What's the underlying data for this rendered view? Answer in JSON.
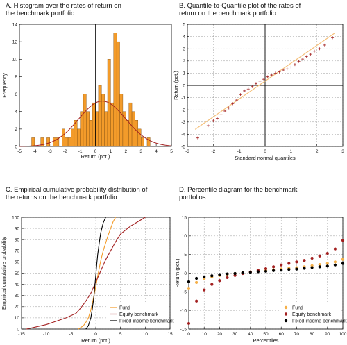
{
  "chart_data": [
    {
      "id": "A",
      "type": "bar",
      "title_lines": [
        "A. Histogram over the rates of return on",
        "the benchmark portfolio"
      ],
      "xlabel": "Return (pct.)",
      "ylabel": "Frequency",
      "xlim": [
        -5,
        5
      ],
      "ylim": [
        0,
        14
      ],
      "xticks": [
        -5,
        -4,
        -3,
        -2,
        -1,
        0,
        1,
        2,
        3,
        4,
        5
      ],
      "yticks": [
        0,
        2,
        4,
        6,
        8,
        10,
        12,
        14
      ],
      "bin_width": 0.2,
      "bins": [
        [
          -4.2,
          1
        ],
        [
          -3.6,
          1
        ],
        [
          -3.2,
          1
        ],
        [
          -2.8,
          1
        ],
        [
          -2.6,
          1
        ],
        [
          -2.2,
          2
        ],
        [
          -2.0,
          1
        ],
        [
          -1.8,
          1
        ],
        [
          -1.6,
          2
        ],
        [
          -1.4,
          3
        ],
        [
          -1.2,
          2
        ],
        [
          -1.0,
          4
        ],
        [
          -0.8,
          6
        ],
        [
          -0.6,
          4
        ],
        [
          -0.4,
          3
        ],
        [
          -0.2,
          5
        ],
        [
          0.0,
          4
        ],
        [
          0.2,
          7
        ],
        [
          0.4,
          6
        ],
        [
          0.6,
          4
        ],
        [
          0.8,
          10
        ],
        [
          1.0,
          5
        ],
        [
          1.2,
          13
        ],
        [
          1.4,
          12
        ],
        [
          1.6,
          6
        ],
        [
          1.8,
          4
        ],
        [
          2.0,
          3
        ],
        [
          2.2,
          5
        ],
        [
          2.4,
          4
        ],
        [
          2.6,
          3
        ],
        [
          2.8,
          2
        ],
        [
          3.0,
          1
        ],
        [
          3.4,
          1
        ]
      ],
      "fit_curve": {
        "mean": 0.45,
        "sd": 1.55,
        "peak": 5.2
      },
      "bar_color": "#F39B2A",
      "curve_color": "#A32020"
    },
    {
      "id": "B",
      "type": "scatter",
      "title_lines": [
        "B. Quantile-to-Quantile plot of the rates of",
        "return on the benchmark portfolio"
      ],
      "xlabel": "Standard normal quantiles",
      "ylabel": "Return (pct.)",
      "xlim": [
        -3,
        3
      ],
      "ylim": [
        -5,
        5
      ],
      "xticks": [
        -3,
        -2,
        -1,
        0,
        1,
        2,
        3
      ],
      "yticks": [
        -5,
        -4,
        -3,
        -2,
        -1,
        0,
        1,
        2,
        3,
        4,
        5
      ],
      "points": [
        [
          -2.6,
          -4.3
        ],
        [
          -2.2,
          -3.3
        ],
        [
          -2.0,
          -2.9
        ],
        [
          -1.85,
          -2.7
        ],
        [
          -1.7,
          -2.4
        ],
        [
          -1.55,
          -2.1
        ],
        [
          -1.4,
          -1.85
        ],
        [
          -1.25,
          -1.5
        ],
        [
          -1.1,
          -1.2
        ],
        [
          -0.95,
          -0.75
        ],
        [
          -0.8,
          -0.45
        ],
        [
          -0.65,
          -0.3
        ],
        [
          -0.5,
          -0.1
        ],
        [
          -0.35,
          0.15
        ],
        [
          -0.2,
          0.35
        ],
        [
          -0.05,
          0.5
        ],
        [
          0.1,
          0.7
        ],
        [
          0.25,
          0.85
        ],
        [
          0.4,
          1.0
        ],
        [
          0.55,
          1.1
        ],
        [
          0.7,
          1.25
        ],
        [
          0.85,
          1.35
        ],
        [
          1.0,
          1.5
        ],
        [
          1.15,
          1.7
        ],
        [
          1.3,
          1.95
        ],
        [
          1.45,
          2.15
        ],
        [
          1.6,
          2.35
        ],
        [
          1.75,
          2.55
        ],
        [
          1.9,
          2.8
        ],
        [
          2.1,
          3.0
        ],
        [
          2.3,
          3.3
        ],
        [
          2.6,
          3.9
        ]
      ],
      "ref_line": [
        [
          -2.7,
          -3.6
        ],
        [
          2.7,
          4.3
        ]
      ],
      "marker_color": "#A32020",
      "line_color": "#F5C07A"
    },
    {
      "id": "C",
      "type": "line",
      "title_lines": [
        "C. Empirical cumulative probability distribution of",
        "the returns on the benchmark portfolio"
      ],
      "xlabel": "Return (pct.)",
      "ylabel": "Empirical cumulative probability",
      "xlim": [
        -15,
        15
      ],
      "ylim": [
        0,
        100
      ],
      "xticks": [
        -15,
        -10,
        -5,
        0,
        5,
        10,
        15
      ],
      "yticks": [
        0,
        10,
        20,
        30,
        40,
        50,
        60,
        70,
        80,
        90,
        100
      ],
      "legend": "bottom-right",
      "series": [
        {
          "name": "Fund",
          "color": "#F39B2A",
          "x": [
            -3.5,
            -2.5,
            -2.0,
            -1.5,
            -1.0,
            -0.5,
            0.0,
            0.5,
            1.0,
            1.5,
            2.0,
            2.5,
            3.0,
            3.5,
            4.0
          ],
          "y": [
            0,
            3,
            6,
            10,
            17,
            27,
            38,
            50,
            61,
            70,
            77,
            84,
            90,
            96,
            100
          ]
        },
        {
          "name": "Equity benchmark",
          "color": "#A32020",
          "x": [
            -14,
            -12,
            -10,
            -8,
            -6,
            -4,
            -3,
            -2,
            -1,
            0,
            1,
            2,
            3,
            4,
            5,
            7,
            10
          ],
          "y": [
            0,
            2,
            4,
            7,
            10,
            14,
            19,
            25,
            32,
            42,
            52,
            62,
            70,
            78,
            85,
            92,
            100
          ]
        },
        {
          "name": "Fixed-income benchmark",
          "color": "#000000",
          "x": [
            -2.0,
            -1.5,
            -1.0,
            -0.7,
            -0.4,
            -0.2,
            0.0,
            0.2,
            0.4,
            0.7,
            1.0,
            1.5,
            2.0
          ],
          "y": [
            0,
            3,
            10,
            18,
            28,
            38,
            48,
            58,
            67,
            77,
            86,
            95,
            100
          ]
        }
      ]
    },
    {
      "id": "D",
      "type": "scatter",
      "title_lines": [
        "D. Percentile diagram for the  benchmark",
        "portfolios"
      ],
      "xlabel": "Percentiles",
      "ylabel": "Return (pct.)",
      "xlim": [
        0,
        100
      ],
      "ylim": [
        -15,
        15
      ],
      "xticks": [
        0,
        10,
        20,
        30,
        40,
        50,
        60,
        70,
        80,
        90,
        100
      ],
      "yticks": [
        -15,
        -10,
        -5,
        0,
        5,
        10,
        15
      ],
      "legend": "bottom-right",
      "series": [
        {
          "name": "Fund",
          "color": "#F5B04A",
          "x": [
            0,
            5,
            10,
            15,
            20,
            25,
            30,
            35,
            40,
            45,
            50,
            55,
            60,
            65,
            70,
            75,
            80,
            85,
            90,
            95,
            100
          ],
          "y": [
            -4.2,
            -2.5,
            -1.5,
            -1.0,
            -0.6,
            -0.3,
            -0.1,
            0.1,
            0.3,
            0.5,
            0.7,
            0.9,
            1.1,
            1.3,
            1.5,
            1.7,
            2.0,
            2.3,
            2.6,
            3.0,
            3.7
          ]
        },
        {
          "name": "Equity benchmark",
          "color": "#A32020",
          "x": [
            0,
            5,
            10,
            15,
            20,
            25,
            30,
            35,
            40,
            45,
            50,
            55,
            60,
            65,
            70,
            75,
            80,
            85,
            90,
            95,
            100
          ],
          "y": [
            -13.5,
            -7.5,
            -4.5,
            -3.0,
            -2.0,
            -1.2,
            -0.6,
            -0.1,
            0.3,
            0.8,
            1.2,
            1.7,
            2.2,
            2.6,
            3.0,
            3.4,
            4.0,
            4.6,
            5.3,
            6.5,
            8.8
          ]
        },
        {
          "name": "Fixed-income benchmark",
          "color": "#000000",
          "x": [
            0,
            5,
            10,
            15,
            20,
            25,
            30,
            35,
            40,
            45,
            50,
            55,
            60,
            65,
            70,
            75,
            80,
            85,
            90,
            95,
            100
          ],
          "y": [
            -2.3,
            -1.4,
            -1.0,
            -0.7,
            -0.4,
            -0.2,
            -0.1,
            0.1,
            0.2,
            0.4,
            0.5,
            0.7,
            0.8,
            1.0,
            1.1,
            1.3,
            1.5,
            1.7,
            1.9,
            2.2,
            2.6
          ]
        }
      ]
    }
  ]
}
